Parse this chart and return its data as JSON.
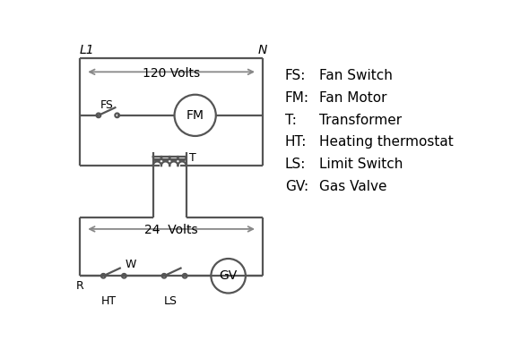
{
  "background_color": "#ffffff",
  "line_color": "#555555",
  "arrow_color": "#888888",
  "text_color": "#000000",
  "legend_items": [
    [
      "FS:",
      "Fan Switch"
    ],
    [
      "FM:",
      "Fan Motor"
    ],
    [
      "T:",
      "Transformer"
    ],
    [
      "HT:",
      "Heating thermostat"
    ],
    [
      "LS:",
      "Limit Switch"
    ],
    [
      "GV:",
      "Gas Valve"
    ]
  ],
  "label_L1": "L1",
  "label_N": "N",
  "label_120V": "120 Volts",
  "label_24V": "24  Volts",
  "label_T": "T",
  "label_FS": "FS",
  "label_FM": "FM",
  "label_GV": "GV",
  "label_R": "R",
  "label_W": "W",
  "label_HT": "HT",
  "label_LS": "LS"
}
